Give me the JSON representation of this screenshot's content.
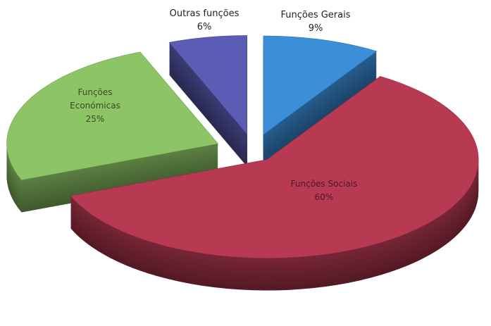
{
  "chart_data": {
    "type": "pie",
    "three_d": true,
    "exploded": true,
    "categories": [
      "Funções Gerais",
      "Funções Sociais",
      "Funções Económicas",
      "Outras funções"
    ],
    "values": [
      9,
      60,
      25,
      6
    ],
    "value_labels": [
      "9%",
      "60%",
      "25%",
      "6%"
    ],
    "colors": [
      "#3b8fd9",
      "#b83a52",
      "#8dc566",
      "#5b5cb3"
    ]
  }
}
